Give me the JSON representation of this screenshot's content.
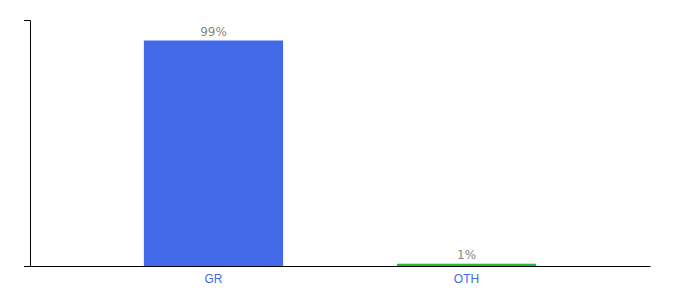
{
  "chart_data": {
    "type": "bar",
    "categories": [
      "GR",
      "OTH"
    ],
    "values": [
      99,
      1
    ],
    "value_labels": [
      "99%",
      "1%"
    ],
    "colors": [
      "#4169e8",
      "#22bb33"
    ],
    "ylim": [
      0,
      108
    ],
    "yticks": [],
    "grid": false,
    "data_labels": true,
    "tick_labels": "x"
  }
}
